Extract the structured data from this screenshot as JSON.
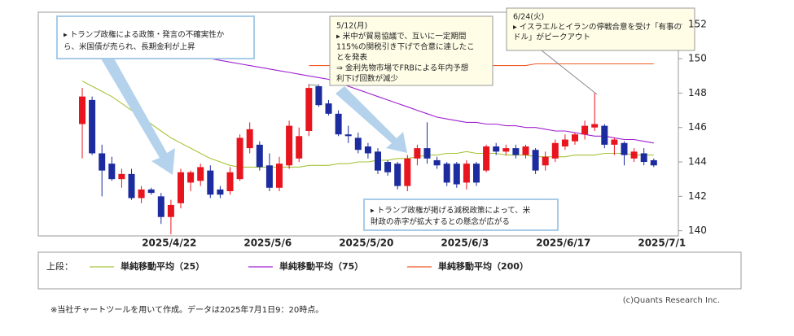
{
  "chart_data": {
    "type": "candlestick",
    "categories": [
      null,
      null,
      null,
      null,
      null,
      null,
      null,
      null,
      "2025/4/22",
      null,
      null,
      null,
      null,
      null,
      null,
      null,
      null,
      null,
      "2025/5/6",
      null,
      null,
      null,
      null,
      null,
      null,
      null,
      null,
      null,
      "2025/5/20",
      null,
      null,
      null,
      null,
      null,
      null,
      null,
      null,
      null,
      "2025/6/3",
      null,
      null,
      null,
      null,
      null,
      null,
      null,
      null,
      null,
      "2025/6/17",
      null,
      null,
      null,
      null,
      null,
      null,
      null,
      null,
      null,
      "2025/7/1"
    ],
    "open": [
      146.2,
      147.6,
      144.5,
      143.9,
      143.0,
      143.3,
      141.9,
      142.4,
      142.0,
      140.8,
      141.6,
      142.8,
      142.9,
      143.5,
      142.4,
      142.3,
      143.0,
      144.8,
      145.0,
      143.8,
      142.5,
      143.8,
      144.2,
      145.8,
      148.4,
      147.4,
      146.8,
      145.6,
      145.4,
      144.9,
      144.6,
      144.0,
      143.9,
      142.6,
      144.2,
      144.8,
      144.1,
      143.9,
      143.9,
      142.8,
      143.9,
      143.5,
      144.9,
      144.6,
      144.8,
      144.4,
      144.7,
      143.8,
      144.2,
      144.9,
      145.2,
      145.6,
      146.0,
      146.1,
      145.0,
      145.1,
      144.2,
      144.5,
      144.1
    ],
    "high": [
      148.3,
      147.8,
      145.0,
      144.3,
      143.6,
      143.6,
      142.6,
      142.5,
      142.2,
      141.8,
      143.6,
      143.5,
      143.9,
      143.8,
      142.6,
      143.7,
      145.6,
      146.3,
      145.2,
      144.5,
      144.3,
      146.4,
      146.0,
      148.5,
      148.5,
      147.6,
      147.0,
      146.1,
      145.7,
      145.1,
      144.8,
      144.1,
      144.0,
      144.4,
      145.0,
      146.3,
      144.3,
      144.0,
      144.0,
      144.1,
      144.0,
      145.0,
      145.1,
      145.0,
      145.0,
      145.0,
      144.8,
      144.6,
      145.3,
      145.6,
      145.7,
      146.4,
      148.0,
      146.2,
      145.4,
      145.2,
      144.8,
      144.8,
      144.2
    ],
    "low": [
      144.2,
      144.4,
      142.0,
      142.9,
      142.5,
      141.8,
      141.6,
      142.1,
      140.4,
      139.8,
      141.3,
      142.3,
      142.6,
      141.9,
      141.9,
      142.1,
      142.9,
      144.5,
      143.5,
      142.3,
      142.3,
      143.6,
      144.0,
      145.5,
      147.2,
      146.7,
      145.5,
      145.1,
      144.5,
      144.2,
      143.3,
      143.2,
      142.4,
      142.3,
      143.8,
      143.9,
      143.6,
      142.6,
      142.5,
      142.4,
      142.6,
      143.4,
      144.4,
      144.4,
      144.2,
      144.2,
      143.3,
      143.5,
      144.0,
      144.7,
      145.0,
      145.3,
      145.8,
      144.8,
      144.4,
      143.8,
      144.0,
      143.8,
      143.7
    ],
    "close": [
      147.8,
      144.5,
      143.5,
      143.0,
      143.3,
      141.9,
      142.4,
      142.2,
      140.8,
      141.5,
      143.4,
      143.4,
      143.7,
      142.1,
      142.1,
      143.4,
      145.4,
      145.9,
      143.7,
      142.5,
      143.9,
      146.1,
      145.5,
      148.3,
      147.3,
      146.8,
      145.6,
      145.5,
      144.7,
      144.5,
      143.5,
      143.4,
      142.6,
      144.2,
      144.8,
      144.2,
      143.8,
      142.8,
      142.7,
      143.9,
      142.8,
      144.9,
      144.6,
      144.8,
      144.4,
      144.9,
      143.5,
      144.3,
      145.1,
      145.3,
      145.6,
      146.1,
      146.2,
      145.0,
      145.3,
      144.4,
      144.6,
      144.0,
      143.8
    ],
    "up_color": "#e8141e",
    "down_color": "#1c2c9e",
    "legend_label": "上段：",
    "series": [
      {
        "name": "単純移動平均（25）",
        "color": "#a6c43a",
        "values": [
          148.7,
          148.4,
          148.1,
          147.8,
          147.4,
          147.0,
          146.6,
          146.2,
          145.8,
          145.4,
          145.1,
          144.8,
          144.5,
          144.2,
          144.0,
          143.8,
          143.7,
          143.7,
          143.7,
          143.7,
          143.7,
          143.7,
          143.7,
          143.8,
          143.8,
          143.8,
          143.9,
          143.9,
          144.0,
          144.0,
          144.1,
          144.1,
          144.2,
          144.2,
          144.3,
          144.4,
          144.4,
          144.5,
          144.5,
          144.6,
          144.5,
          144.5,
          144.5,
          144.4,
          144.4,
          144.4,
          144.3,
          144.3,
          144.3,
          144.3,
          144.4,
          144.4,
          144.4,
          144.5,
          144.5,
          144.5,
          144.4,
          144.4,
          144.4
        ]
      },
      {
        "name": "単純移動平均（75）",
        "color": "#a020d0",
        "values": [
          null,
          null,
          null,
          null,
          null,
          null,
          null,
          null,
          null,
          null,
          null,
          150.2,
          150.1,
          150.0,
          149.9,
          149.8,
          149.7,
          149.6,
          149.5,
          149.4,
          149.3,
          149.2,
          149.1,
          149.0,
          148.9,
          148.8,
          148.6,
          148.4,
          148.2,
          148.0,
          147.8,
          147.6,
          147.4,
          147.2,
          147.0,
          146.8,
          146.6,
          146.5,
          146.4,
          146.3,
          146.3,
          146.2,
          146.2,
          146.1,
          146.1,
          146.0,
          146.0,
          145.9,
          145.8,
          145.8,
          145.7,
          145.6,
          145.5,
          145.5,
          145.4,
          145.3,
          145.3,
          145.2,
          145.1
        ]
      },
      {
        "name": "単純移動平均（200）",
        "color": "#f05a28",
        "values": [
          null,
          null,
          null,
          null,
          null,
          null,
          null,
          null,
          null,
          null,
          null,
          null,
          null,
          null,
          null,
          null,
          null,
          null,
          null,
          null,
          null,
          null,
          null,
          149.6,
          149.6,
          149.6,
          149.6,
          149.6,
          149.6,
          149.6,
          149.6,
          149.6,
          149.6,
          149.6,
          149.6,
          149.6,
          149.6,
          149.6,
          149.6,
          149.6,
          149.6,
          149.6,
          149.6,
          149.6,
          149.6,
          149.6,
          149.7,
          149.7,
          149.7,
          149.7,
          149.7,
          149.7,
          149.7,
          149.7,
          149.7,
          149.7,
          149.7,
          149.7,
          149.7
        ]
      }
    ],
    "ylim": [
      139.7,
      152.7
    ],
    "yticks": [
      140,
      142,
      144,
      146,
      148,
      150,
      152
    ],
    "annotations": [
      {
        "lines": [
          "▸ トランプ政権による政策・発言の不確実性か",
          "ら、米国債が売られ、長期金利が上昇"
        ]
      },
      {
        "lines": [
          "5/12(月)",
          "▸ 米中が貿易協議で、互いに一定期間",
          "115%の関税引き下げで合意に達したこ",
          "とを発表",
          "⇒ 金利先物市場でFRBによる年内予想",
          "利下げ回数が減少"
        ]
      },
      {
        "lines": [
          "6/24(火)",
          "▸ イスラエルとイランの停戦合意を受け「有事の",
          "ドル」がピークアウト"
        ]
      },
      {
        "lines": [
          "▸ トランプ政権が掲げる減税政策によって、米",
          "財政の赤字が拡大するとの懸念が広がる"
        ]
      }
    ],
    "credit": "(c)Quants Research Inc.",
    "footnote": "※当社チャートツールを用いて作成。データは2025年7月1日9：20時点。"
  }
}
